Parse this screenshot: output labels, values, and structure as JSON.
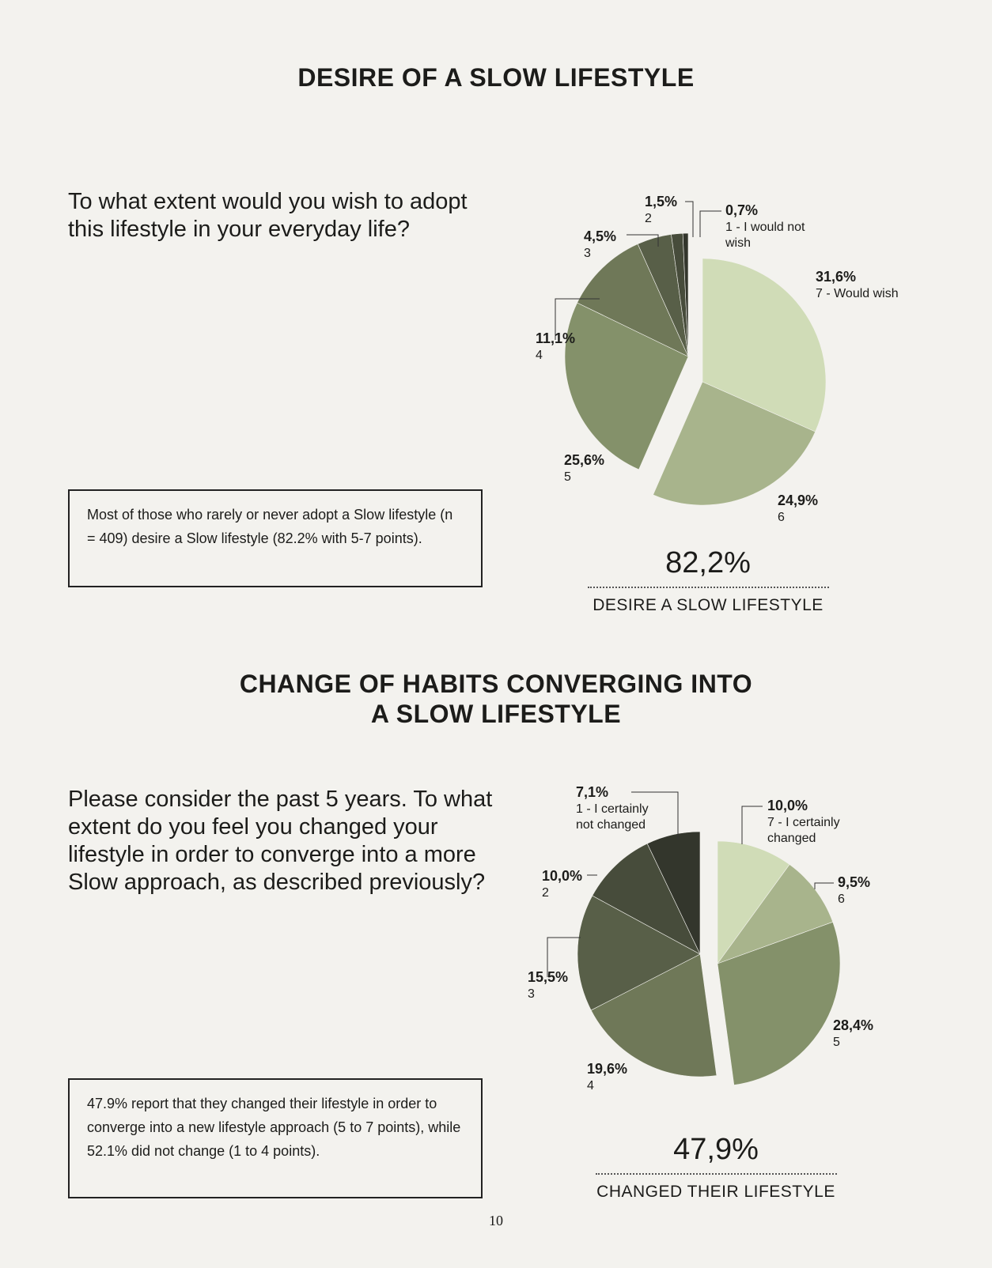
{
  "section1": {
    "title": "DESIRE OF A SLOW LIFESTYLE",
    "question": "To what extent would you wish to adopt this lifestyle in your everyday life?",
    "note": "Most of those who rarely or never adopt a Slow lifestyle (n = 409) desire a Slow lifestyle (82.2% with 5-7 points).",
    "stat_value": "82,2%",
    "stat_label": "DESIRE A SLOW LIFESTYLE"
  },
  "section2": {
    "title_line1": "CHANGE OF HABITS CONVERGING INTO",
    "title_line2": "A SLOW LIFESTYLE",
    "question": "Please consider the past 5 years. To what extent do you feel you changed your lifestyle in order to converge into a more Slow approach, as described previously?",
    "note": "47.9% report that they changed their lifestyle in order to converge into a new lifestyle approach (5 to 7 points), while 52.1% did not change (1 to 4 points).",
    "stat_value": "47,9%",
    "stat_label": "CHANGED THEIR LIFESTYLE"
  },
  "page_number": "10",
  "chart_data": [
    {
      "type": "pie",
      "title": "",
      "slices": [
        {
          "label": "31,6%",
          "category": "7 - Would wish",
          "value": 31.6,
          "color": "#d0dcb7",
          "exploded": false
        },
        {
          "label": "24,9%",
          "category": "6",
          "value": 24.9,
          "color": "#a8b48c",
          "exploded": false
        },
        {
          "label": "25,6%",
          "category": "5",
          "value": 25.6,
          "color": "#84916a",
          "exploded": true
        },
        {
          "label": "11,1%",
          "category": "4",
          "value": 11.1,
          "color": "#6f7858",
          "exploded": true
        },
        {
          "label": "4,5%",
          "category": "3",
          "value": 4.5,
          "color": "#585f48",
          "exploded": true
        },
        {
          "label": "1,5%",
          "category": "2",
          "value": 1.5,
          "color": "#474c3b",
          "exploded": true
        },
        {
          "label": "0,7%",
          "category": "1 - I would not wish",
          "value": 0.7,
          "color": "#33362c",
          "exploded": true
        }
      ]
    },
    {
      "type": "pie",
      "title": "",
      "slices": [
        {
          "label": "10,0%",
          "category": "7 - I certainly changed",
          "value": 10.0,
          "color": "#d0dcb7",
          "exploded": true
        },
        {
          "label": "9,5%",
          "category": "6",
          "value": 9.5,
          "color": "#a8b48c",
          "exploded": true
        },
        {
          "label": "28,4%",
          "category": "5",
          "value": 28.4,
          "color": "#84916a",
          "exploded": true
        },
        {
          "label": "19,6%",
          "category": "4",
          "value": 19.6,
          "color": "#6f7858",
          "exploded": false
        },
        {
          "label": "15,5%",
          "category": "3",
          "value": 15.5,
          "color": "#585f48",
          "exploded": false
        },
        {
          "label": "10,0%",
          "category": "2",
          "value": 10.0,
          "color": "#474c3b",
          "exploded": false
        },
        {
          "label": "7,1%",
          "category": "1 - I certainly not changed",
          "value": 7.1,
          "color": "#33362c",
          "exploded": false
        }
      ]
    }
  ]
}
